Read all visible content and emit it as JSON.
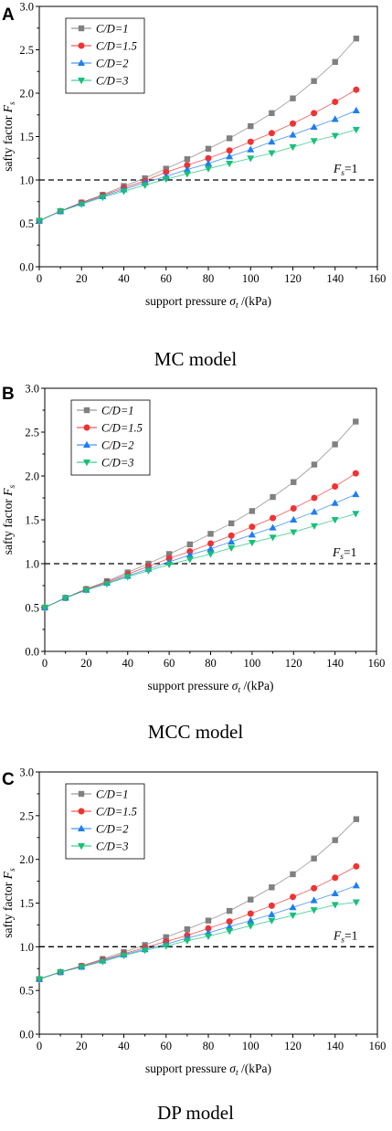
{
  "figure": {
    "colors": {
      "C/D=1": "#808080",
      "C/D=1.5": "#f03232",
      "C/D=2": "#1e7ef0",
      "C/D=3": "#18c07a",
      "line": "#6c6c6c",
      "reference": "#000000"
    },
    "markers": {
      "C/D=1": "square",
      "C/D=1.5": "circle",
      "C/D=2": "triangle-up",
      "C/D=3": "triangle-down"
    }
  },
  "chart_data": [
    {
      "panel": "A",
      "caption": "MC model",
      "type": "line",
      "xlabel": "support pressure σ_t /(kPa)",
      "ylabel": "safty factor F_s",
      "xlim": [
        0,
        160
      ],
      "ylim": [
        0,
        3.0
      ],
      "xticks": [
        "0",
        "20",
        "40",
        "60",
        "80",
        "100",
        "120",
        "140",
        "160"
      ],
      "yticks": [
        "0.0",
        "0.5",
        "1.0",
        "1.5",
        "2.0",
        "2.5",
        "3.0"
      ],
      "legend_position": "top-left",
      "reference_line": {
        "y": 1.0,
        "style": "dashed",
        "label": "F_s=1"
      },
      "x": [
        0,
        10,
        20,
        30,
        40,
        50,
        60,
        70,
        80,
        90,
        100,
        110,
        120,
        130,
        140,
        150
      ],
      "series": [
        {
          "name": "C/D=1",
          "values": [
            0.53,
            0.64,
            0.74,
            0.83,
            0.93,
            1.02,
            1.13,
            1.24,
            1.36,
            1.48,
            1.62,
            1.77,
            1.94,
            2.14,
            2.36,
            2.63
          ]
        },
        {
          "name": "C/D=1.5",
          "values": [
            0.53,
            0.64,
            0.74,
            0.82,
            0.91,
            0.99,
            1.09,
            1.17,
            1.25,
            1.34,
            1.44,
            1.54,
            1.65,
            1.77,
            1.9,
            2.04
          ]
        },
        {
          "name": "C/D=2",
          "values": [
            0.53,
            0.64,
            0.73,
            0.81,
            0.89,
            0.97,
            1.04,
            1.12,
            1.19,
            1.27,
            1.35,
            1.44,
            1.52,
            1.61,
            1.7,
            1.8
          ]
        },
        {
          "name": "C/D=3",
          "values": [
            0.53,
            0.64,
            0.72,
            0.8,
            0.87,
            0.94,
            1.01,
            1.07,
            1.13,
            1.19,
            1.25,
            1.31,
            1.38,
            1.45,
            1.51,
            1.58
          ]
        }
      ]
    },
    {
      "panel": "B",
      "caption": "MCC model",
      "type": "line",
      "xlabel": "support pressure σ_t /(kPa)",
      "ylabel": "safty factor F_s",
      "xlim": [
        0,
        160
      ],
      "ylim": [
        0,
        3.0
      ],
      "xticks": [
        "0",
        "20",
        "40",
        "60",
        "80",
        "100",
        "120",
        "140",
        "160"
      ],
      "yticks": [
        "0.0",
        "0.5",
        "1.0",
        "1.5",
        "2.0",
        "2.5",
        "3.0"
      ],
      "legend_position": "top-left",
      "reference_line": {
        "y": 1.0,
        "style": "dashed",
        "label": "F_s=1"
      },
      "x": [
        0,
        10,
        20,
        30,
        40,
        50,
        60,
        70,
        80,
        90,
        100,
        110,
        120,
        130,
        140,
        150
      ],
      "series": [
        {
          "name": "C/D=1",
          "values": [
            0.5,
            0.61,
            0.71,
            0.8,
            0.9,
            1.0,
            1.11,
            1.22,
            1.34,
            1.46,
            1.6,
            1.76,
            1.93,
            2.13,
            2.36,
            2.62
          ]
        },
        {
          "name": "C/D=1.5",
          "values": [
            0.5,
            0.61,
            0.71,
            0.79,
            0.88,
            0.97,
            1.06,
            1.14,
            1.23,
            1.32,
            1.42,
            1.52,
            1.63,
            1.75,
            1.88,
            2.03
          ]
        },
        {
          "name": "C/D=2",
          "values": [
            0.5,
            0.61,
            0.7,
            0.78,
            0.86,
            0.94,
            1.02,
            1.1,
            1.17,
            1.25,
            1.33,
            1.41,
            1.5,
            1.59,
            1.69,
            1.79
          ]
        },
        {
          "name": "C/D=3",
          "values": [
            0.5,
            0.61,
            0.7,
            0.77,
            0.85,
            0.92,
            0.99,
            1.05,
            1.11,
            1.18,
            1.24,
            1.3,
            1.36,
            1.43,
            1.5,
            1.57
          ]
        }
      ]
    },
    {
      "panel": "C",
      "caption": "DP model",
      "type": "line",
      "xlabel": "support pressure σ_t /(kPa)",
      "ylabel": "safty factor F_s",
      "xlim": [
        0,
        160
      ],
      "ylim": [
        0,
        3.0
      ],
      "xticks": [
        "0",
        "20",
        "40",
        "60",
        "80",
        "100",
        "120",
        "140",
        "160"
      ],
      "yticks": [
        "0.0",
        "0.5",
        "1.0",
        "1.5",
        "2.0",
        "2.5",
        "3.0"
      ],
      "legend_position": "top-left",
      "reference_line": {
        "y": 1.0,
        "style": "dashed",
        "label": "F_s=1"
      },
      "x": [
        0,
        10,
        20,
        30,
        40,
        50,
        60,
        70,
        80,
        90,
        100,
        110,
        120,
        130,
        140,
        150
      ],
      "series": [
        {
          "name": "C/D=1",
          "values": [
            0.63,
            0.71,
            0.78,
            0.86,
            0.94,
            1.02,
            1.11,
            1.2,
            1.3,
            1.41,
            1.54,
            1.68,
            1.83,
            2.01,
            2.22,
            2.46
          ]
        },
        {
          "name": "C/D=1.5",
          "values": [
            0.63,
            0.71,
            0.78,
            0.85,
            0.92,
            0.99,
            1.06,
            1.13,
            1.21,
            1.29,
            1.38,
            1.47,
            1.57,
            1.67,
            1.79,
            1.92
          ]
        },
        {
          "name": "C/D=2",
          "values": [
            0.63,
            0.71,
            0.77,
            0.84,
            0.91,
            0.97,
            1.03,
            1.1,
            1.16,
            1.23,
            1.3,
            1.37,
            1.45,
            1.53,
            1.61,
            1.7
          ]
        },
        {
          "name": "C/D=3",
          "values": [
            0.63,
            0.71,
            0.77,
            0.83,
            0.9,
            0.96,
            1.01,
            1.07,
            1.12,
            1.18,
            1.24,
            1.3,
            1.36,
            1.42,
            1.48,
            1.51
          ]
        }
      ]
    }
  ]
}
